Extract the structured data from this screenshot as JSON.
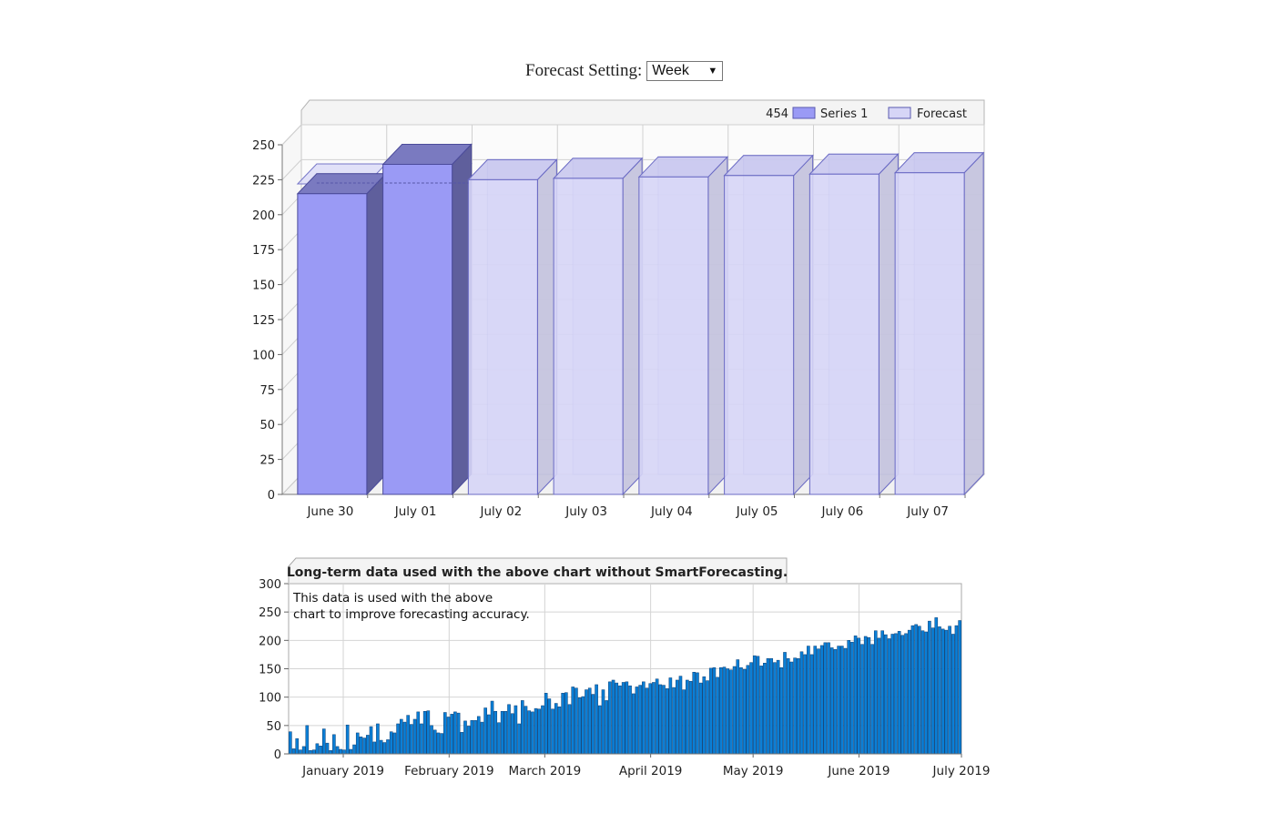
{
  "forecast_setting": {
    "label": "Forecast Setting:",
    "selected": "Week"
  },
  "legend": {
    "total": "454",
    "series1_label": "Series 1",
    "forecast_label": "Forecast"
  },
  "annotation": {
    "line1": "This data is used with the above",
    "line2": "chart to improve forecasting accuracy."
  },
  "colors": {
    "series1": "#9a9af5",
    "forecast": "#d6d5f6",
    "longterm": "#0b7fd6"
  },
  "chart_data": [
    {
      "type": "bar",
      "title": "",
      "categories": [
        "June 30",
        "July 01",
        "July 02",
        "July 03",
        "July 04",
        "July 05",
        "July 06",
        "July 07"
      ],
      "series": [
        {
          "name": "Series 1",
          "values": [
            215,
            236,
            null,
            null,
            null,
            null,
            null,
            null
          ]
        },
        {
          "name": "Forecast",
          "values": [
            null,
            null,
            225,
            226,
            227,
            228,
            229,
            230
          ]
        }
      ],
      "forecast_baseline": 222,
      "y_ticks": [
        0,
        25,
        50,
        75,
        100,
        125,
        150,
        175,
        200,
        225,
        250
      ],
      "ylim": [
        0,
        250
      ],
      "grid": true,
      "legend_position": "top-right"
    },
    {
      "type": "bar",
      "title": "Long-term data used with the above chart without SmartForecasting.",
      "x_start": "2018-12-16",
      "x_end": "2019-07-01",
      "values": [
        39,
        9,
        27,
        7,
        13,
        50,
        6,
        7,
        18,
        14,
        44,
        19,
        6,
        34,
        13,
        8,
        7,
        51,
        8,
        16,
        37,
        30,
        28,
        33,
        48,
        21,
        53,
        24,
        20,
        25,
        39,
        37,
        53,
        61,
        56,
        68,
        52,
        61,
        74,
        53,
        75,
        76,
        50,
        42,
        37,
        36,
        73,
        65,
        70,
        74,
        72,
        38,
        58,
        49,
        59,
        59,
        66,
        56,
        81,
        69,
        93,
        75,
        55,
        75,
        75,
        87,
        71,
        85,
        53,
        94,
        84,
        76,
        74,
        80,
        79,
        85,
        107,
        97,
        79,
        89,
        83,
        107,
        108,
        87,
        118,
        116,
        99,
        101,
        113,
        116,
        105,
        122,
        85,
        113,
        94,
        127,
        130,
        125,
        120,
        126,
        127,
        120,
        106,
        118,
        121,
        127,
        116,
        124,
        126,
        132,
        122,
        121,
        115,
        134,
        117,
        130,
        137,
        113,
        130,
        128,
        144,
        143,
        125,
        136,
        129,
        151,
        152,
        135,
        152,
        153,
        150,
        148,
        154,
        166,
        152,
        149,
        156,
        161,
        173,
        172,
        155,
        160,
        168,
        168,
        161,
        165,
        152,
        179,
        168,
        162,
        169,
        168,
        180,
        175,
        190,
        175,
        190,
        185,
        191,
        196,
        196,
        187,
        184,
        190,
        190,
        186,
        200,
        197,
        208,
        204,
        193,
        207,
        205,
        193,
        217,
        204,
        217,
        210,
        203,
        211,
        212,
        216,
        209,
        212,
        218,
        226,
        228,
        225,
        217,
        215,
        234,
        222,
        240,
        224,
        220,
        218,
        225,
        211,
        226,
        235
      ],
      "y_ticks": [
        0,
        50,
        100,
        150,
        200,
        250,
        300
      ],
      "ylim": [
        0,
        300
      ],
      "x_ticks": [
        "January 2019",
        "February 2019",
        "March 2019",
        "April 2019",
        "May 2019",
        "June 2019",
        "July 2019"
      ],
      "grid": true
    }
  ]
}
